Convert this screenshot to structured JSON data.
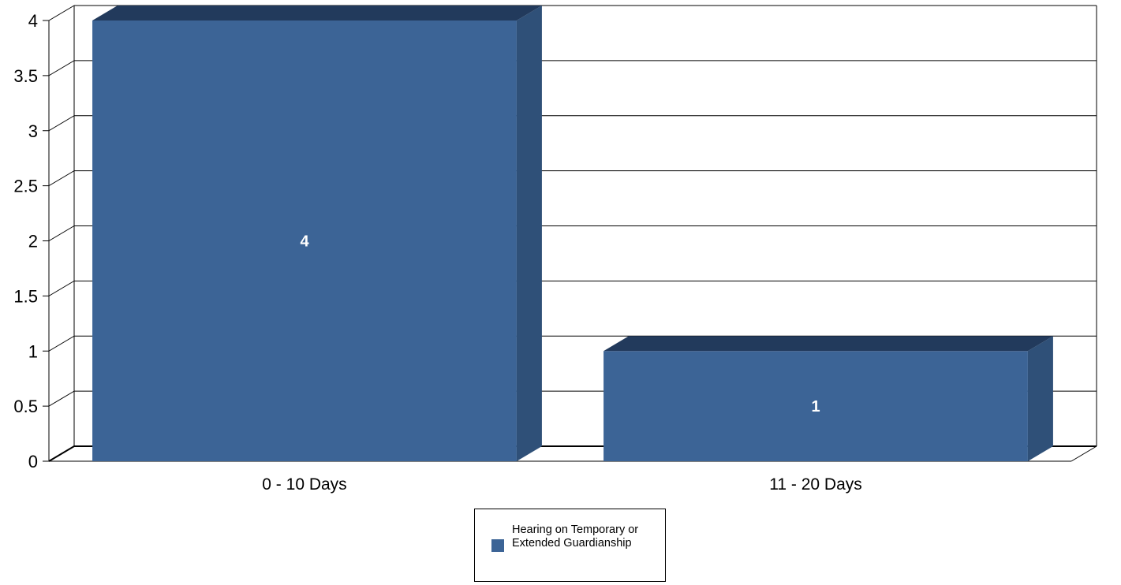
{
  "colors": {
    "bar_front": "#3c6496",
    "bar_side": "#2f5078",
    "bar_top": "#223a5c",
    "grid": "#000000",
    "background": "#ffffff"
  },
  "legend": {
    "label": "Hearing on Temporary or Extended Guardianship",
    "placement": "bottom-center"
  },
  "chart_data": {
    "type": "bar",
    "style": "3d",
    "categories": [
      "0 - 10 Days",
      "11 - 20 Days"
    ],
    "series": [
      {
        "name": "Hearing on Temporary or Extended Guardianship",
        "values": [
          4,
          1
        ],
        "labels": [
          "4",
          "1"
        ]
      }
    ],
    "ylim": [
      0,
      4
    ],
    "yticks": [
      0,
      0.5,
      1,
      1.5,
      2,
      2.5,
      3,
      3.5,
      4
    ],
    "ytick_labels": [
      "0",
      "0.5",
      "1",
      "1.5",
      "2",
      "2.5",
      "3",
      "3.5",
      "4"
    ],
    "grid": true,
    "title": "",
    "xlabel": "",
    "ylabel": ""
  }
}
